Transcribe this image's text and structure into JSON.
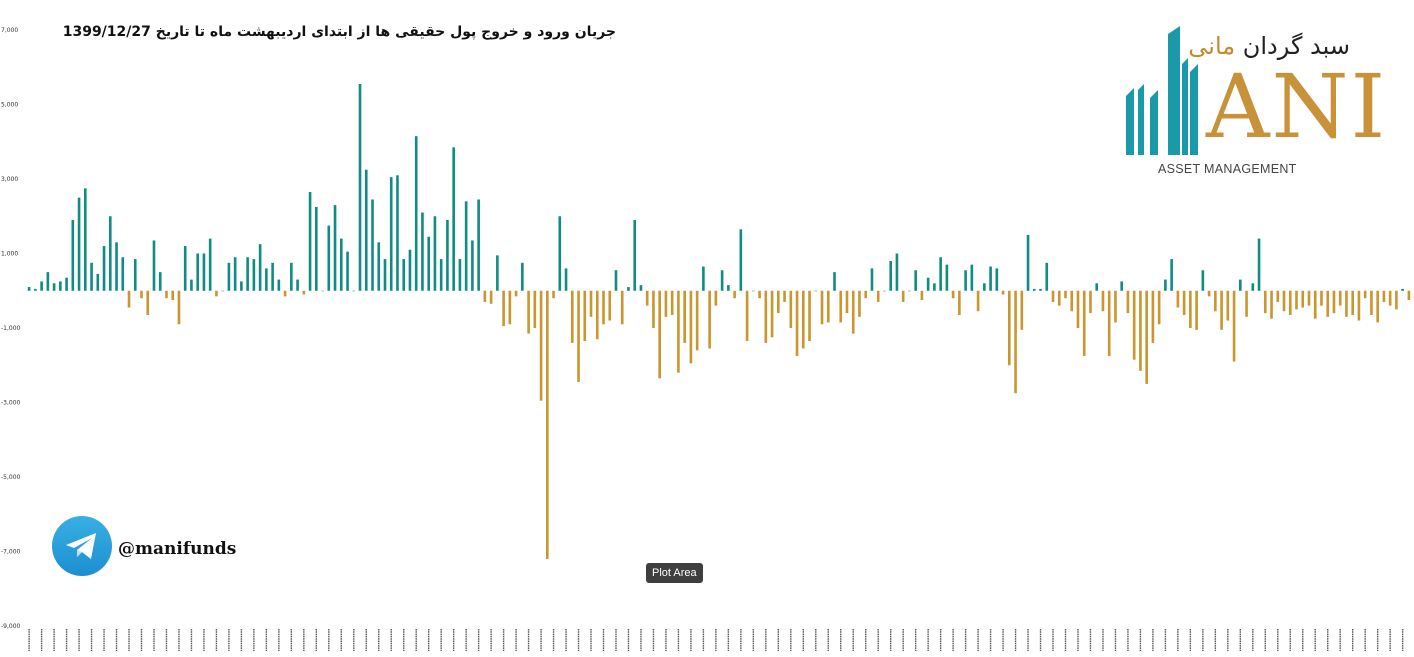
{
  "header": {
    "title": "جریان ورود و خروج پول حقیقی ها از ابتدای اردیبهشت ماه تا تاریخ 1399/12/27"
  },
  "logo": {
    "persian_name_dark": "سبد گردان",
    "persian_name_gold": "مانی",
    "brand_letters": "ANI",
    "subtitle": "ASSET MANAGEMENT"
  },
  "social": {
    "icon": "telegram-icon",
    "handle": "@manifunds"
  },
  "tooltip": {
    "text": "Plot Area"
  },
  "colors": {
    "positive": "#118c82",
    "negative": "#c9962f"
  },
  "chart_data": {
    "type": "bar",
    "title": "جریان ورود و خروج پول حقیقی ها از ابتدای اردیبهشت ماه تا تاریخ 1399/12/27",
    "ylim": [
      -9000,
      7000
    ],
    "yticks": [
      -9000,
      -7000,
      -5000,
      -3000,
      -1000,
      1000,
      3000,
      5000,
      7000
    ],
    "ytick_labels": [
      "-9,000",
      "-7,000",
      "-5,000",
      "-3,000",
      "-1,000",
      "1,000",
      "3,000",
      "5,000",
      "7,000"
    ],
    "grid": false,
    "x_tick_labels_legible": false,
    "values": [
      100,
      50,
      250,
      500,
      200,
      250,
      350,
      1900,
      2500,
      2750,
      750,
      450,
      1200,
      2000,
      1300,
      900,
      -450,
      850,
      -200,
      -650,
      1350,
      500,
      -200,
      -250,
      -900,
      1200,
      300,
      1000,
      1000,
      1400,
      -150,
      0,
      750,
      900,
      250,
      900,
      850,
      1250,
      600,
      750,
      300,
      -150,
      750,
      300,
      -100,
      2650,
      2250,
      0,
      1750,
      2300,
      1400,
      1050,
      0,
      5550,
      3250,
      2450,
      1300,
      850,
      3050,
      3100,
      850,
      1100,
      4150,
      2100,
      1450,
      2000,
      850,
      1900,
      3850,
      850,
      2400,
      1350,
      2450,
      -300,
      -350,
      950,
      -950,
      -900,
      -150,
      750,
      -1150,
      -1000,
      -2950,
      -7200,
      -200,
      2000,
      600,
      -1400,
      -2450,
      -1350,
      -700,
      -1300,
      -900,
      -800,
      550,
      -900,
      100,
      1900,
      150,
      -400,
      -1000,
      -2350,
      -700,
      -650,
      -2200,
      -1400,
      -1950,
      -1600,
      650,
      -1550,
      -400,
      550,
      150,
      -200,
      1650,
      -1350,
      0,
      -200,
      -1400,
      -1250,
      -600,
      -300,
      -1000,
      -1750,
      -1550,
      -1350,
      0,
      -900,
      -850,
      500,
      -850,
      -600,
      -1150,
      -700,
      -200,
      600,
      -300,
      0,
      800,
      1000,
      -300,
      0,
      550,
      -250,
      350,
      200,
      900,
      700,
      -200,
      -650,
      550,
      700,
      -550,
      200,
      650,
      600,
      -100,
      -2000,
      -2750,
      -1050,
      1500,
      50,
      50,
      750,
      -300,
      -400,
      -200,
      -550,
      -1000,
      -1750,
      -600,
      200,
      -550,
      -1750,
      -850,
      250,
      -600,
      -1850,
      -2150,
      -2500,
      -1400,
      -900,
      300,
      850,
      -450,
      -650,
      -1000,
      -1050,
      550,
      -150,
      -550,
      -1050,
      -800,
      -1900,
      300,
      -700,
      200,
      1400,
      -600,
      -750,
      -300,
      -550,
      -650,
      -500,
      -450,
      -400,
      -750,
      -400,
      -700,
      -600,
      -400,
      -700,
      -650,
      -800,
      -200,
      -650,
      -850,
      -300,
      -400,
      -500,
      50,
      -250
    ]
  }
}
